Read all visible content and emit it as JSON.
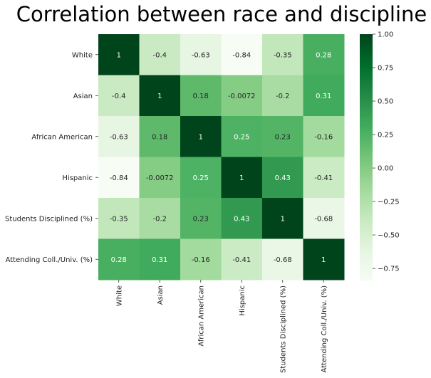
{
  "chart_data": {
    "type": "heatmap",
    "title": "Correlation between race and discipline",
    "row_labels": [
      "White",
      "Asian",
      "African American",
      "Hispanic",
      "Students Disciplined (%)",
      "Attending Coll./Univ. (%)"
    ],
    "col_labels": [
      "White",
      "Asian",
      "African American",
      "Hispanic",
      "Students Disciplined (%)",
      "Attending Coll./Univ. (%)"
    ],
    "values": [
      [
        1,
        -0.4,
        -0.63,
        -0.84,
        -0.35,
        0.28
      ],
      [
        -0.4,
        1,
        0.18,
        -0.0072,
        -0.2,
        0.31
      ],
      [
        -0.63,
        0.18,
        1,
        0.25,
        0.23,
        -0.16
      ],
      [
        -0.84,
        -0.0072,
        0.25,
        1,
        0.43,
        -0.41
      ],
      [
        -0.35,
        -0.2,
        0.23,
        0.43,
        1,
        -0.68
      ],
      [
        0.28,
        0.31,
        -0.16,
        -0.41,
        -0.68,
        1
      ]
    ],
    "value_labels": [
      [
        "1",
        "-0.4",
        "-0.63",
        "-0.84",
        "-0.35",
        "0.28"
      ],
      [
        "-0.4",
        "1",
        "0.18",
        "-0.0072",
        "-0.2",
        "0.31"
      ],
      [
        "-0.63",
        "0.18",
        "1",
        "0.25",
        "0.23",
        "-0.16"
      ],
      [
        "-0.84",
        "-0.0072",
        "0.25",
        "1",
        "0.43",
        "-0.41"
      ],
      [
        "-0.35",
        "-0.2",
        "0.23",
        "0.43",
        "1",
        "-0.68"
      ],
      [
        "0.28",
        "0.31",
        "-0.16",
        "-0.41",
        "-0.68",
        "1"
      ]
    ],
    "colormap": "Greens",
    "colormap_stops": [
      "#f7fcf5",
      "#e5f5e0",
      "#c7e9c0",
      "#a1d99b",
      "#74c476",
      "#41ab5d",
      "#238b45",
      "#006d2c",
      "#00441b"
    ],
    "vmin": -0.84,
    "vmax": 1.0,
    "colorbar_ticks": [
      1.0,
      0.75,
      0.5,
      0.25,
      0.0,
      -0.25,
      -0.5,
      -0.75
    ],
    "colorbar_tick_labels": [
      "1.00",
      "0.75",
      "0.50",
      "0.25",
      "0.00",
      "−0.25",
      "−0.50",
      "−0.75"
    ]
  }
}
